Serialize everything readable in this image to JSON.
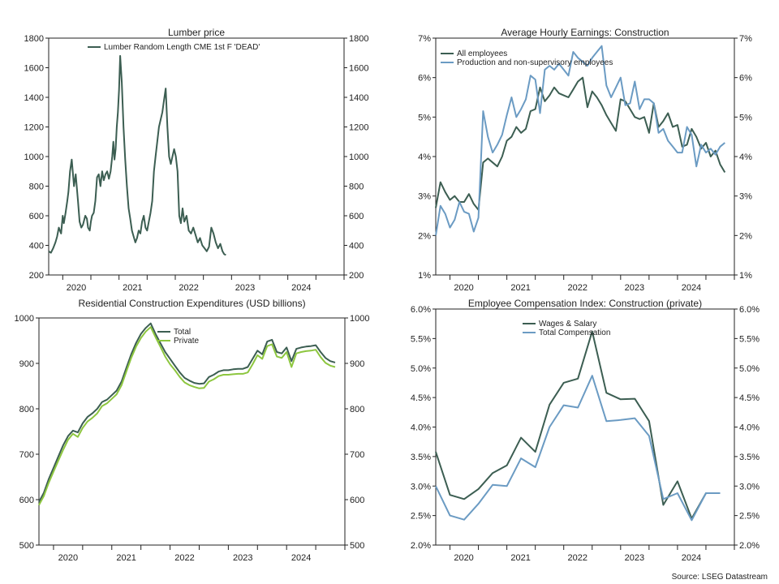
{
  "source": "Source: LSEG Datastream",
  "chart_data": [
    {
      "id": "lumber",
      "type": "line",
      "title": "Lumber price",
      "xlabel": "",
      "ylabel": "",
      "x_tick_labels": [
        "2020",
        "2021",
        "2022",
        "2023",
        "2024"
      ],
      "x_range": [
        2019.75,
        2025.0
      ],
      "ylim": [
        200,
        1800
      ],
      "y_ticks": [
        200,
        400,
        600,
        800,
        1000,
        1200,
        1400,
        1600,
        1800
      ],
      "y_tick_format": "int",
      "legend_position": "top",
      "grid": false,
      "series": [
        {
          "name": "Lumber Random Length CME 1st F 'DEAD'",
          "color": "#3c5e52",
          "x": [
            2019.75,
            2019.79,
            2019.83,
            2019.87,
            2019.9,
            2019.93,
            2019.97,
            2020.0,
            2020.02,
            2020.05,
            2020.08,
            2020.1,
            2020.13,
            2020.16,
            2020.2,
            2020.23,
            2020.27,
            2020.3,
            2020.33,
            2020.36,
            2020.4,
            2020.43,
            2020.45,
            2020.48,
            2020.5,
            2020.52,
            2020.55,
            2020.58,
            2020.61,
            2020.64,
            2020.67,
            2020.7,
            2020.73,
            2020.76,
            2020.79,
            2020.82,
            2020.85,
            2020.88,
            2020.9,
            2020.92,
            2020.94,
            2020.96,
            2020.98,
            2021.0,
            2021.02,
            2021.05,
            2021.08,
            2021.11,
            2021.14,
            2021.17,
            2021.2,
            2021.23,
            2021.26,
            2021.29,
            2021.32,
            2021.35,
            2021.38,
            2021.41,
            2021.44,
            2021.47,
            2021.5,
            2021.53,
            2021.56,
            2021.59,
            2021.62,
            2021.65,
            2021.68,
            2021.71,
            2021.74,
            2021.77,
            2021.8,
            2021.83,
            2021.86,
            2021.89,
            2021.92,
            2021.95,
            2021.98,
            2022.01,
            2022.04,
            2022.07,
            2022.1,
            2022.13,
            2022.16,
            2022.2,
            2022.24,
            2022.28,
            2022.32,
            2022.36,
            2022.4,
            2022.44,
            2022.48,
            2022.52,
            2022.56,
            2022.6,
            2022.64,
            2022.68,
            2022.72,
            2022.76,
            2022.8,
            2022.84,
            2022.87,
            2022.9
          ],
          "values": [
            360,
            350,
            380,
            420,
            460,
            520,
            480,
            600,
            550,
            620,
            700,
            760,
            900,
            980,
            800,
            880,
            700,
            560,
            520,
            540,
            600,
            580,
            520,
            500,
            560,
            600,
            620,
            700,
            860,
            880,
            800,
            900,
            840,
            880,
            900,
            850,
            900,
            1000,
            1100,
            980,
            1050,
            1200,
            1300,
            1450,
            1680,
            1500,
            1200,
            980,
            800,
            650,
            580,
            500,
            460,
            420,
            450,
            500,
            480,
            560,
            600,
            520,
            500,
            560,
            620,
            700,
            900,
            1000,
            1100,
            1200,
            1250,
            1300,
            1380,
            1460,
            1200,
            1000,
            950,
            1000,
            1050,
            1000,
            900,
            600,
            550,
            650,
            560,
            600,
            500,
            480,
            520,
            470,
            420,
            450,
            400,
            380,
            360,
            390,
            520,
            480,
            420,
            380,
            410,
            360,
            340,
            335
          ]
        }
      ]
    },
    {
      "id": "ahe",
      "type": "line",
      "title": "Average Hourly Earnings: Construction",
      "xlabel": "",
      "ylabel": "",
      "x_tick_labels": [
        "2020",
        "2021",
        "2022",
        "2023",
        "2024"
      ],
      "x_range": [
        2019.75,
        2025.0
      ],
      "ylim": [
        1,
        7
      ],
      "y_ticks": [
        1,
        2,
        3,
        4,
        5,
        6,
        7
      ],
      "y_tick_format": "pct0",
      "legend_position": "top-left",
      "grid": false,
      "series": [
        {
          "name": "All employees",
          "color": "#3c5e52",
          "x": [
            2019.75,
            2019.833,
            2019.917,
            2020.0,
            2020.083,
            2020.167,
            2020.25,
            2020.333,
            2020.417,
            2020.5,
            2020.583,
            2020.667,
            2020.75,
            2020.833,
            2020.917,
            2021.0,
            2021.083,
            2021.167,
            2021.25,
            2021.333,
            2021.417,
            2021.5,
            2021.583,
            2021.667,
            2021.75,
            2021.833,
            2021.917,
            2022.0,
            2022.083,
            2022.167,
            2022.25,
            2022.333,
            2022.417,
            2022.5,
            2022.583,
            2022.667,
            2022.75,
            2022.833,
            2022.917,
            2023.0,
            2023.083,
            2023.167,
            2023.25,
            2023.333,
            2023.417,
            2023.5,
            2023.583,
            2023.667,
            2023.75,
            2023.833,
            2023.917,
            2024.0,
            2024.083,
            2024.167,
            2024.25,
            2024.333,
            2024.417,
            2024.5,
            2024.583,
            2024.667,
            2024.75,
            2024.833
          ],
          "values": [
            2.7,
            3.35,
            3.1,
            2.9,
            3.0,
            2.85,
            2.85,
            3.05,
            2.8,
            2.65,
            3.85,
            3.95,
            3.85,
            3.75,
            4.0,
            4.4,
            4.5,
            4.75,
            4.6,
            4.7,
            5.15,
            5.2,
            5.75,
            5.4,
            5.55,
            5.75,
            5.6,
            5.55,
            5.5,
            5.7,
            5.9,
            6.0,
            5.25,
            5.65,
            5.5,
            5.3,
            5.05,
            4.85,
            4.65,
            5.45,
            5.4,
            5.2,
            5.0,
            4.95,
            5.0,
            4.6,
            5.35,
            4.75,
            4.9,
            5.1,
            4.75,
            4.8,
            4.25,
            4.3,
            4.7,
            4.5,
            4.2,
            4.35,
            4.0,
            4.15,
            3.8,
            3.6
          ]
        },
        {
          "name": "Production and non-supervisory employees",
          "color": "#6b9bc3",
          "x": [
            2019.75,
            2019.833,
            2019.917,
            2020.0,
            2020.083,
            2020.167,
            2020.25,
            2020.333,
            2020.417,
            2020.5,
            2020.583,
            2020.667,
            2020.75,
            2020.833,
            2020.917,
            2021.0,
            2021.083,
            2021.167,
            2021.25,
            2021.333,
            2021.417,
            2021.5,
            2021.583,
            2021.667,
            2021.75,
            2021.833,
            2021.917,
            2022.0,
            2022.083,
            2022.167,
            2022.25,
            2022.333,
            2022.417,
            2022.5,
            2022.583,
            2022.667,
            2022.75,
            2022.833,
            2022.917,
            2023.0,
            2023.083,
            2023.167,
            2023.25,
            2023.333,
            2023.417,
            2023.5,
            2023.583,
            2023.667,
            2023.75,
            2023.833,
            2023.917,
            2024.0,
            2024.083,
            2024.167,
            2024.25,
            2024.333,
            2024.417,
            2024.5,
            2024.583,
            2024.667,
            2024.75,
            2024.833
          ],
          "values": [
            2.0,
            2.75,
            2.55,
            2.2,
            2.4,
            2.85,
            2.6,
            2.55,
            2.1,
            2.45,
            5.15,
            4.5,
            4.1,
            4.3,
            4.55,
            5.05,
            5.5,
            5.0,
            5.2,
            5.45,
            6.05,
            5.95,
            5.1,
            6.2,
            6.3,
            6.2,
            6.35,
            6.2,
            6.05,
            6.65,
            6.5,
            6.4,
            6.3,
            6.5,
            6.65,
            6.8,
            5.8,
            5.5,
            5.75,
            6.0,
            5.3,
            5.35,
            5.9,
            5.2,
            5.45,
            5.45,
            5.35,
            4.6,
            4.7,
            4.4,
            4.25,
            4.1,
            4.1,
            4.75,
            4.55,
            3.75,
            4.3,
            4.1,
            4.2,
            4.05,
            4.25,
            4.35
          ]
        }
      ]
    },
    {
      "id": "resi",
      "type": "line",
      "title": "Residential Construction Expenditures (USD billions)",
      "xlabel": "",
      "ylabel": "",
      "x_tick_labels": [
        "2020",
        "2021",
        "2022",
        "2023",
        "2024"
      ],
      "x_range": [
        2019.75,
        2025.0
      ],
      "ylim": [
        500,
        1000
      ],
      "y_ticks": [
        500,
        600,
        700,
        800,
        900,
        1000
      ],
      "y_tick_format": "int",
      "legend_position": "top-right",
      "grid": false,
      "series": [
        {
          "name": "Total",
          "color": "#3c5e52",
          "x": [
            2019.75,
            2019.833,
            2019.917,
            2020.0,
            2020.083,
            2020.167,
            2020.25,
            2020.333,
            2020.417,
            2020.5,
            2020.583,
            2020.667,
            2020.75,
            2020.833,
            2020.917,
            2021.0,
            2021.083,
            2021.167,
            2021.25,
            2021.333,
            2021.417,
            2021.5,
            2021.583,
            2021.667,
            2021.75,
            2021.833,
            2021.917,
            2022.0,
            2022.083,
            2022.167,
            2022.25,
            2022.333,
            2022.417,
            2022.5,
            2022.583,
            2022.667,
            2022.75,
            2022.833,
            2022.917,
            2023.0,
            2023.083,
            2023.167,
            2023.25,
            2023.333,
            2023.417,
            2023.5,
            2023.583,
            2023.667,
            2023.75,
            2023.833,
            2023.917,
            2024.0,
            2024.083,
            2024.167,
            2024.25,
            2024.333,
            2024.417,
            2024.5,
            2024.583,
            2024.667,
            2024.75,
            2024.833
          ],
          "values": [
            595,
            615,
            645,
            670,
            695,
            720,
            740,
            752,
            748,
            768,
            782,
            790,
            800,
            815,
            820,
            830,
            840,
            860,
            890,
            920,
            945,
            965,
            978,
            988,
            965,
            945,
            925,
            910,
            895,
            880,
            868,
            862,
            857,
            855,
            856,
            870,
            875,
            882,
            885,
            885,
            887,
            888,
            888,
            892,
            910,
            928,
            920,
            948,
            952,
            925,
            922,
            935,
            905,
            932,
            935,
            937,
            938,
            940,
            925,
            912,
            905,
            902
          ]
        },
        {
          "name": "Private",
          "color": "#8dc63f",
          "x": [
            2019.75,
            2019.833,
            2019.917,
            2020.0,
            2020.083,
            2020.167,
            2020.25,
            2020.333,
            2020.417,
            2020.5,
            2020.583,
            2020.667,
            2020.75,
            2020.833,
            2020.917,
            2021.0,
            2021.083,
            2021.167,
            2021.25,
            2021.333,
            2021.417,
            2021.5,
            2021.583,
            2021.667,
            2021.75,
            2021.833,
            2021.917,
            2022.0,
            2022.083,
            2022.167,
            2022.25,
            2022.333,
            2022.417,
            2022.5,
            2022.583,
            2022.667,
            2022.75,
            2022.833,
            2022.917,
            2023.0,
            2023.083,
            2023.167,
            2023.25,
            2023.333,
            2023.417,
            2023.5,
            2023.583,
            2023.667,
            2023.75,
            2023.833,
            2023.917,
            2024.0,
            2024.083,
            2024.167,
            2024.25,
            2024.333,
            2024.417,
            2024.5,
            2024.583,
            2024.667,
            2024.75,
            2024.833
          ],
          "values": [
            588,
            608,
            637,
            662,
            686,
            710,
            732,
            745,
            738,
            758,
            772,
            780,
            790,
            806,
            812,
            822,
            832,
            852,
            882,
            912,
            937,
            956,
            970,
            980,
            958,
            937,
            915,
            898,
            885,
            870,
            858,
            852,
            848,
            845,
            846,
            860,
            865,
            872,
            875,
            875,
            876,
            877,
            877,
            880,
            898,
            918,
            910,
            938,
            942,
            915,
            912,
            925,
            892,
            922,
            925,
            927,
            928,
            930,
            914,
            901,
            895,
            892
          ]
        }
      ]
    },
    {
      "id": "eci",
      "type": "line",
      "title": "Employee Compensation Index: Construction (private)",
      "xlabel": "",
      "ylabel": "",
      "x_tick_labels": [
        "2020",
        "2021",
        "2022",
        "2023",
        "2024"
      ],
      "x_range": [
        2019.75,
        2025.0
      ],
      "ylim": [
        2.0,
        6.0
      ],
      "y_ticks": [
        2.0,
        2.5,
        3.0,
        3.5,
        4.0,
        4.5,
        5.0,
        5.5,
        6.0
      ],
      "y_tick_format": "pct1",
      "legend_position": "top",
      "grid": false,
      "series": [
        {
          "name": "Wages & Salary",
          "color": "#3c5e52",
          "x": [
            2019.75,
            2020.0,
            2020.25,
            2020.5,
            2020.75,
            2021.0,
            2021.25,
            2021.5,
            2021.75,
            2022.0,
            2022.25,
            2022.5,
            2022.75,
            2023.0,
            2023.25,
            2023.5,
            2023.75,
            2024.0,
            2024.25,
            2024.5,
            2024.75
          ],
          "values": [
            3.58,
            2.85,
            2.78,
            2.95,
            3.22,
            3.35,
            3.82,
            3.58,
            4.38,
            4.75,
            4.82,
            5.62,
            4.58,
            4.47,
            4.48,
            4.1,
            2.68,
            3.08,
            2.45,
            2.88,
            2.88
          ]
        },
        {
          "name": "Total Compensation",
          "color": "#6b9bc3",
          "x": [
            2019.75,
            2020.0,
            2020.25,
            2020.5,
            2020.75,
            2021.0,
            2021.25,
            2021.5,
            2021.75,
            2022.0,
            2022.25,
            2022.5,
            2022.75,
            2023.0,
            2023.25,
            2023.5,
            2023.75,
            2024.0,
            2024.25,
            2024.5,
            2024.75
          ],
          "values": [
            3.0,
            2.5,
            2.43,
            2.7,
            3.02,
            3.0,
            3.47,
            3.32,
            4.0,
            4.37,
            4.33,
            4.87,
            4.1,
            4.12,
            4.15,
            3.85,
            2.78,
            2.88,
            2.42,
            2.88,
            2.88
          ]
        }
      ]
    }
  ]
}
